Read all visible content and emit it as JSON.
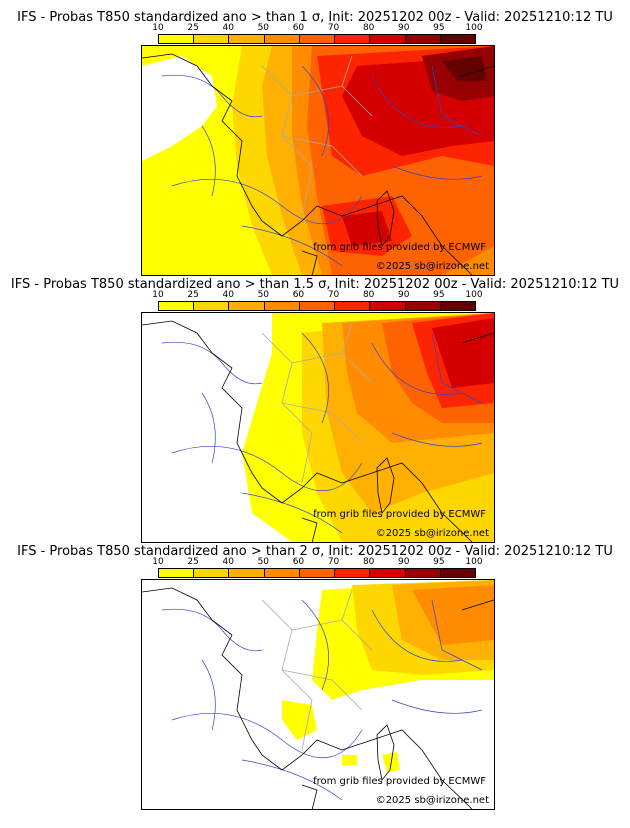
{
  "panels": [
    {
      "title": "IFS - Probas T850  standardized ano > than 1 σ, Init: 20251202 00z - Valid: 20251210:12 TU"
    },
    {
      "title": "IFS - Probas T850  standardized ano > than 1.5 σ, Init: 20251202 00z - Valid: 20251210:12 TU"
    },
    {
      "title": "IFS - Probas T850  standardized ano > than 2 σ, Init: 20251202 00z - Valid: 20251210:12 TU"
    }
  ],
  "colorbar": {
    "ticks": [
      "10",
      "25",
      "40",
      "50",
      "60",
      "70",
      "80",
      "90",
      "95",
      "100"
    ],
    "colors": [
      "#ffff00",
      "#ffd700",
      "#ffb000",
      "#ff8c00",
      "#ff6200",
      "#ff2400",
      "#d40000",
      "#960000",
      "#640000"
    ]
  },
  "credits": {
    "source": "from grib files provided by ECMWF",
    "copyright": "©2025 sb@irizone.net"
  }
}
